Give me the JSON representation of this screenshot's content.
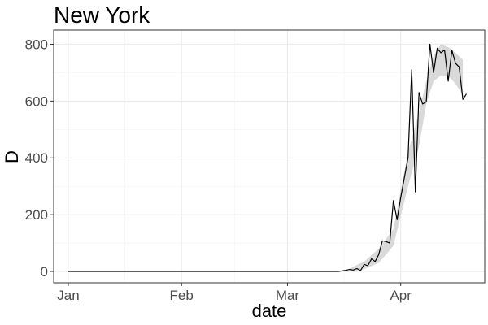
{
  "chart_data": {
    "type": "line",
    "title": "New York",
    "xlabel": "date",
    "ylabel": "D",
    "x_ticks": [
      "Jan",
      "Feb",
      "Mar",
      "Apr"
    ],
    "x_tick_dates": [
      "2020-01-01",
      "2020-02-01",
      "2020-03-01",
      "2020-04-01"
    ],
    "xlim": [
      "2019-12-28",
      "2020-04-24"
    ],
    "y_ticks": [
      0,
      200,
      400,
      600,
      800
    ],
    "ylim": [
      -40,
      850
    ],
    "grid": true,
    "legend": "none",
    "line_color": "#000000",
    "band_color": "#d9d9d9",
    "series": [
      {
        "x": [
          "2020-01-01",
          "2020-03-15",
          "2020-03-16",
          "2020-03-17",
          "2020-03-18",
          "2020-03-19",
          "2020-03-20",
          "2020-03-21",
          "2020-03-22",
          "2020-03-23",
          "2020-03-24",
          "2020-03-25",
          "2020-03-26",
          "2020-03-27",
          "2020-03-28",
          "2020-03-29",
          "2020-03-30",
          "2020-03-31",
          "2020-04-01",
          "2020-04-02",
          "2020-04-03",
          "2020-04-04",
          "2020-04-05",
          "2020-04-06",
          "2020-04-07",
          "2020-04-08",
          "2020-04-09",
          "2020-04-10",
          "2020-04-11",
          "2020-04-12",
          "2020-04-13",
          "2020-04-14",
          "2020-04-15",
          "2020-04-16",
          "2020-04-17",
          "2020-04-18",
          "2020-04-19"
        ],
        "y": [
          0,
          0,
          2,
          4,
          7,
          5,
          10,
          3,
          25,
          20,
          44,
          35,
          60,
          108,
          105,
          100,
          250,
          182,
          260,
          330,
          400,
          710,
          280,
          630,
          590,
          597,
          800,
          700,
          786,
          770,
          780,
          670,
          779,
          733,
          720,
          606,
          625
        ]
      }
    ],
    "band": {
      "x": [
        "2020-03-18",
        "2020-03-22",
        "2020-03-26",
        "2020-03-30",
        "2020-04-03",
        "2020-04-06",
        "2020-04-08",
        "2020-04-10",
        "2020-04-12",
        "2020-04-14",
        "2020-04-16",
        "2020-04-18"
      ],
      "lower": [
        0,
        8,
        30,
        90,
        300,
        440,
        590,
        670,
        690,
        690,
        660,
        620
      ],
      "upper": [
        10,
        35,
        80,
        150,
        420,
        560,
        670,
        760,
        800,
        790,
        770,
        745
      ]
    }
  }
}
